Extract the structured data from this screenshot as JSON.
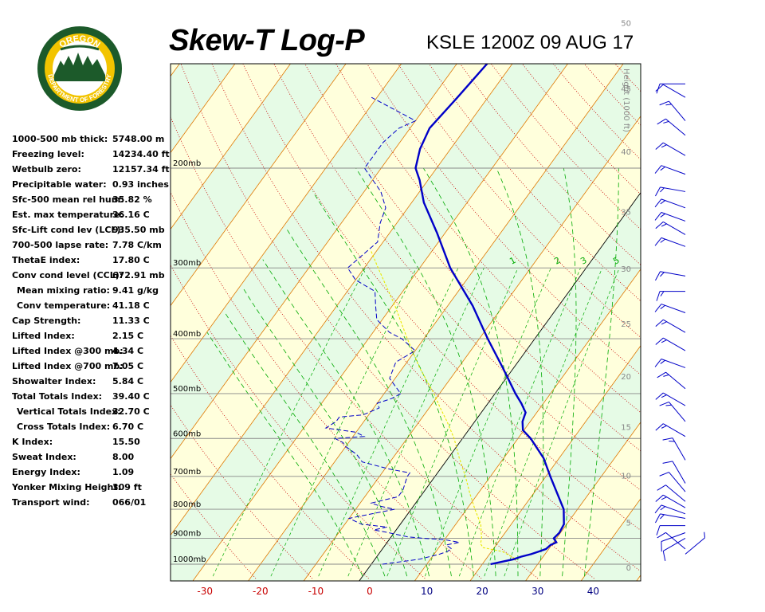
{
  "header": {
    "title": "Skew-T Log-P",
    "station": "KSLE 1200Z 09 AUG 17"
  },
  "logo": {
    "top_text": "OREGON",
    "bottom_text": "DEPARTMENT OF FORESTRY"
  },
  "indices": [
    {
      "label": "1000-500 mb thick:",
      "value": "5748.00 m"
    },
    {
      "label": "Freezing level:",
      "value": "14234.40 ft"
    },
    {
      "label": "Wetbulb zero:",
      "value": "12157.34 ft"
    },
    {
      "label": "Precipitable water:",
      "value": "0.93 inches"
    },
    {
      "label": "Sfc-500 mean rel hum:",
      "value": "35.82 %"
    },
    {
      "label": "Est. max temperature:",
      "value": "36.16 C"
    },
    {
      "label": "Sfc-Lift cond lev (LCL):",
      "value": "935.50 mb"
    },
    {
      "label": "700-500 lapse rate:",
      "value": "7.78 C/km"
    },
    {
      "label": "ThetaE index:",
      "value": "17.80 C"
    },
    {
      "label": "Conv cond level (CCL):",
      "value": "672.91 mb"
    },
    {
      "label": "Mean mixing ratio:",
      "value": "9.41 g/kg",
      "indent": true
    },
    {
      "label": "Conv temperature:",
      "value": "41.18 C",
      "indent": true
    },
    {
      "label": "Cap Strength:",
      "value": "11.33 C"
    },
    {
      "label": "Lifted Index:",
      "value": "2.15 C"
    },
    {
      "label": "Lifted Index @300 mb:",
      "value": "4.34 C"
    },
    {
      "label": "Lifted Index @700 mb:",
      "value": "7.05 C"
    },
    {
      "label": "Showalter Index:",
      "value": "5.84 C"
    },
    {
      "label": "Total Totals Index:",
      "value": "39.40 C"
    },
    {
      "label": "Vertical Totals Index:",
      "value": "32.70 C",
      "indent": true
    },
    {
      "label": "Cross Totals Index:",
      "value": "6.70 C",
      "indent": true
    },
    {
      "label": "K Index:",
      "value": "15.50"
    },
    {
      "label": "Sweat Index:",
      "value": "8.00"
    },
    {
      "label": "Energy Index:",
      "value": "1.09"
    },
    {
      "label": "Yonker Mixing Height:",
      "value": "309 ft"
    },
    {
      "label": "Transport wind:",
      "value": "066/01"
    }
  ],
  "chart_data": {
    "type": "line",
    "title": "Skew-T Log-P",
    "xlabel": "",
    "ylabel": "",
    "x_ticks": [
      -30,
      -20,
      -10,
      0,
      10,
      20,
      30,
      40
    ],
    "xlim": [
      -35,
      48
    ],
    "ylim_mb": [
      1050,
      100
    ],
    "y_scale": "log pressure",
    "isobars_mb": [
      1000,
      900,
      800,
      700,
      600,
      500,
      400,
      300,
      200
    ],
    "isobar_labels": [
      "1000mb",
      "900mb",
      "800mb",
      "700mb",
      "600mb",
      "500mb",
      "400mb",
      "300mb",
      "200mb"
    ],
    "height_axis_title": "Height (1000 ft)",
    "height_ticks_kft": [
      0,
      5,
      10,
      15,
      20,
      25,
      30,
      35,
      40,
      45,
      50
    ],
    "mixing_ratio_labels": [
      "1",
      "2",
      "3",
      "5"
    ],
    "colors": {
      "temperature": "#0000c8",
      "dewpoint": "#0000c8",
      "parcel": "#e8e800",
      "isotherm": "#e07800",
      "dry_adiabat": "#c80000",
      "moist_adiabat": "#00aa00",
      "mixing_ratio": "#00aa00",
      "band_a": "#ffffdc",
      "band_b": "#e6fbe6",
      "tick_label": "#c80000"
    },
    "series": [
      {
        "key": "temperature",
        "points": [
          [
            1000,
            21.5
          ],
          [
            980,
            25
          ],
          [
            970,
            26
          ],
          [
            960,
            27.5
          ],
          [
            950,
            28.5
          ],
          [
            940,
            29.5
          ],
          [
            925,
            29.8
          ],
          [
            915,
            30.5
          ],
          [
            900,
            29.5
          ],
          [
            880,
            29.8
          ],
          [
            850,
            29.5
          ],
          [
            800,
            27.5
          ],
          [
            700,
            20.8
          ],
          [
            650,
            17.2
          ],
          [
            600,
            12.3
          ],
          [
            580,
            9.8
          ],
          [
            560,
            8.6
          ],
          [
            540,
            8.0
          ],
          [
            520,
            6.0
          ],
          [
            500,
            3.7
          ],
          [
            450,
            -2.0
          ],
          [
            400,
            -8.5
          ],
          [
            350,
            -15.5
          ],
          [
            300,
            -24.5
          ],
          [
            260,
            -31.5
          ],
          [
            230,
            -37.8
          ],
          [
            210,
            -41.5
          ],
          [
            200,
            -43.8
          ],
          [
            185,
            -45.5
          ],
          [
            170,
            -46.5
          ],
          [
            160,
            -46.0
          ],
          [
            150,
            -45.5
          ],
          [
            130,
            -44.5
          ]
        ]
      },
      {
        "key": "dewpoint",
        "points": [
          [
            1000,
            2
          ],
          [
            980,
            8
          ],
          [
            960,
            11
          ],
          [
            950,
            12
          ],
          [
            940,
            12.5
          ],
          [
            925,
            11
          ],
          [
            915,
            13
          ],
          [
            905,
            10
          ],
          [
            900,
            6
          ],
          [
            895,
            3
          ],
          [
            880,
            -1
          ],
          [
            870,
            -4
          ],
          [
            860,
            -2
          ],
          [
            850,
            -7
          ],
          [
            830,
            -10
          ],
          [
            800,
            -3
          ],
          [
            790,
            -6
          ],
          [
            780,
            -8
          ],
          [
            760,
            -4
          ],
          [
            740,
            -4
          ],
          [
            700,
            -5
          ],
          [
            690,
            -5
          ],
          [
            680,
            -9
          ],
          [
            660,
            -15
          ],
          [
            640,
            -17
          ],
          [
            620,
            -20
          ],
          [
            610,
            -21
          ],
          [
            600,
            -23
          ],
          [
            595,
            -18
          ],
          [
            585,
            -20
          ],
          [
            575,
            -26
          ],
          [
            560,
            -25
          ],
          [
            550,
            -25
          ],
          [
            545,
            -21
          ],
          [
            530,
            -19
          ],
          [
            520,
            -20
          ],
          [
            510,
            -18
          ],
          [
            500,
            -17
          ],
          [
            470,
            -21
          ],
          [
            440,
            -22
          ],
          [
            420,
            -20
          ],
          [
            400,
            -24
          ],
          [
            390,
            -27
          ],
          [
            370,
            -31
          ],
          [
            350,
            -33
          ],
          [
            330,
            -35
          ],
          [
            315,
            -40
          ],
          [
            300,
            -43
          ],
          [
            270,
            -41
          ],
          [
            250,
            -43
          ],
          [
            235,
            -44
          ],
          [
            220,
            -47
          ],
          [
            200,
            -53
          ],
          [
            190,
            -53
          ],
          [
            180,
            -53
          ],
          [
            170,
            -52
          ],
          [
            165,
            -50
          ],
          [
            150,
            -61
          ]
        ]
      },
      {
        "key": "parcel",
        "points": [
          [
            1000,
            21.5
          ],
          [
            980,
            25.5
          ],
          [
            950,
            22.0
          ],
          [
            935,
            18.0
          ],
          [
            920,
            17.0
          ],
          [
            900,
            16.5
          ],
          [
            850,
            14.5
          ],
          [
            800,
            11.5
          ],
          [
            750,
            8.5
          ],
          [
            700,
            5.5
          ],
          [
            650,
            2.0
          ],
          [
            600,
            -1.5
          ],
          [
            560,
            -5.0
          ],
          [
            530,
            -8.0
          ],
          [
            500,
            -11.0
          ],
          [
            450,
            -17.0
          ],
          [
            400,
            -23.0
          ],
          [
            350,
            -29.5
          ],
          [
            300,
            -37.5
          ],
          [
            280,
            -41.0
          ]
        ]
      }
    ],
    "wind_barbs": [
      {
        "p": 960,
        "dir": 50,
        "spd": 5
      },
      {
        "p": 940,
        "dir": 310,
        "spd": 10
      },
      {
        "p": 900,
        "dir": 240,
        "spd": 10
      },
      {
        "p": 880,
        "dir": 250,
        "spd": 10
      },
      {
        "p": 855,
        "dir": 270,
        "spd": 10
      },
      {
        "p": 830,
        "dir": 280,
        "spd": 15
      },
      {
        "p": 815,
        "dir": 290,
        "spd": 15
      },
      {
        "p": 795,
        "dir": 300,
        "spd": 15
      },
      {
        "p": 775,
        "dir": 310,
        "spd": 10
      },
      {
        "p": 745,
        "dir": 320,
        "spd": 10
      },
      {
        "p": 720,
        "dir": 330,
        "spd": 10
      },
      {
        "p": 655,
        "dir": 330,
        "spd": 15
      },
      {
        "p": 595,
        "dir": 300,
        "spd": 15
      },
      {
        "p": 560,
        "dir": 320,
        "spd": 15
      },
      {
        "p": 525,
        "dir": 300,
        "spd": 15
      },
      {
        "p": 490,
        "dir": 310,
        "spd": 15
      },
      {
        "p": 450,
        "dir": 290,
        "spd": 15
      },
      {
        "p": 420,
        "dir": 300,
        "spd": 15
      },
      {
        "p": 390,
        "dir": 300,
        "spd": 15
      },
      {
        "p": 360,
        "dir": 290,
        "spd": 15
      },
      {
        "p": 330,
        "dir": 270,
        "spd": 15
      },
      {
        "p": 310,
        "dir": 280,
        "spd": 15
      },
      {
        "p": 275,
        "dir": 290,
        "spd": 15
      },
      {
        "p": 262,
        "dir": 300,
        "spd": 15
      },
      {
        "p": 248,
        "dir": 290,
        "spd": 15
      },
      {
        "p": 235,
        "dir": 290,
        "spd": 15
      },
      {
        "p": 220,
        "dir": 280,
        "spd": 15
      },
      {
        "p": 205,
        "dir": 290,
        "spd": 15
      },
      {
        "p": 190,
        "dir": 300,
        "spd": 15
      },
      {
        "p": 175,
        "dir": 310,
        "spd": 15
      },
      {
        "p": 165,
        "dir": 320,
        "spd": 15
      },
      {
        "p": 150,
        "dir": 300,
        "spd": 10
      },
      {
        "p": 142,
        "dir": 270,
        "spd": 10
      }
    ]
  }
}
